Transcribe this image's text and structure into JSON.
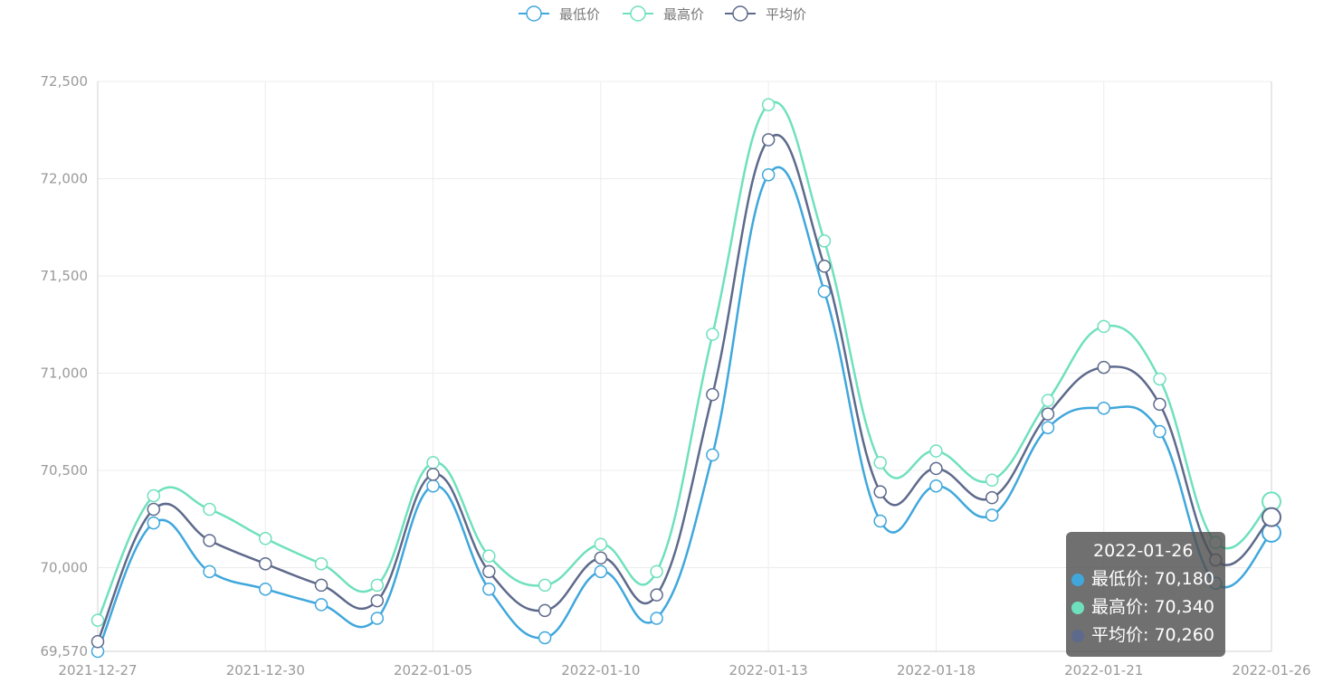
{
  "chart_data": {
    "type": "line",
    "title": "",
    "xlabel": "",
    "ylabel": "",
    "ylim": [
      69570,
      72500
    ],
    "y_ticks": [
      "69,570",
      "70,000",
      "70,500",
      "71,000",
      "71,500",
      "72,000",
      "72,500"
    ],
    "y_tick_values": [
      69570,
      70000,
      70500,
      71000,
      71500,
      72000,
      72500
    ],
    "x_tick_labels": [
      "2021-12-27",
      "2021-12-30",
      "2022-01-05",
      "2022-01-10",
      "2022-01-13",
      "2022-01-18",
      "2022-01-21",
      "2022-01-26"
    ],
    "x_tick_indices": [
      0,
      3,
      6,
      9,
      12,
      15,
      18,
      21
    ],
    "n_points": 22,
    "grid": true,
    "legend_position": "top-center",
    "series": [
      {
        "name": "最低价",
        "color": "#3fa7dc",
        "values": [
          69570,
          70230,
          69980,
          69890,
          69810,
          69740,
          70420,
          69890,
          69640,
          69980,
          69740,
          70580,
          72020,
          71420,
          70240,
          70420,
          70270,
          70720,
          70820,
          70700,
          69920,
          70180
        ]
      },
      {
        "name": "最高价",
        "color": "#6fe0bd",
        "values": [
          69730,
          70370,
          70300,
          70150,
          70020,
          69910,
          70540,
          70060,
          69910,
          70120,
          69980,
          71200,
          72380,
          71680,
          70540,
          70600,
          70450,
          70860,
          71240,
          70970,
          70130,
          70340
        ]
      },
      {
        "name": "平均价",
        "color": "#5e6a8c",
        "values": [
          69620,
          70300,
          70140,
          70020,
          69910,
          69830,
          70480,
          69980,
          69780,
          70050,
          69860,
          70890,
          72200,
          71550,
          70390,
          70510,
          70360,
          70790,
          71030,
          70840,
          70040,
          70260
        ]
      }
    ]
  },
  "tooltip": {
    "date": "2022-01-26",
    "rows": [
      {
        "label": "最低价: 70,180",
        "color": "#3fa7dc"
      },
      {
        "label": "最高价: 70,340",
        "color": "#6fe0bd"
      },
      {
        "label": "平均价: 70,260",
        "color": "#5e6a8c"
      }
    ]
  }
}
